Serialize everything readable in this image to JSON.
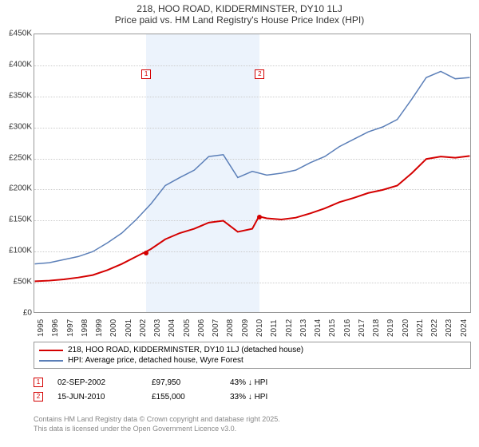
{
  "title": {
    "line1": "218, HOO ROAD, KIDDERMINSTER, DY10 1LJ",
    "line2": "Price paid vs. HM Land Registry's House Price Index (HPI)"
  },
  "chart": {
    "type": "line",
    "background_color": "#ffffff",
    "grid_color": "#cccccc",
    "border_color": "#999999",
    "ylim": [
      0,
      450000
    ],
    "ytick_step": 50000,
    "yticks": [
      {
        "v": 0,
        "label": "£0"
      },
      {
        "v": 50000,
        "label": "£50K"
      },
      {
        "v": 100000,
        "label": "£100K"
      },
      {
        "v": 150000,
        "label": "£150K"
      },
      {
        "v": 200000,
        "label": "£200K"
      },
      {
        "v": 250000,
        "label": "£250K"
      },
      {
        "v": 300000,
        "label": "£300K"
      },
      {
        "v": 350000,
        "label": "£350K"
      },
      {
        "v": 400000,
        "label": "£400K"
      },
      {
        "v": 450000,
        "label": "£450K"
      }
    ],
    "xlim": [
      1995,
      2025
    ],
    "xticks": [
      1995,
      1996,
      1997,
      1998,
      1999,
      2000,
      2001,
      2002,
      2003,
      2004,
      2005,
      2006,
      2007,
      2008,
      2009,
      2010,
      2011,
      2012,
      2013,
      2014,
      2015,
      2016,
      2017,
      2018,
      2019,
      2020,
      2021,
      2022,
      2023,
      2024
    ],
    "shade_band": {
      "from": 2002.67,
      "to": 2010.46,
      "color": "rgba(200,220,245,0.35)"
    },
    "series": [
      {
        "name": "price_paid",
        "label": "218, HOO ROAD, KIDDERMINSTER, DY10 1LJ (detached house)",
        "color": "#d40000",
        "line_width": 2,
        "data": [
          [
            1995,
            50000
          ],
          [
            1996,
            51000
          ],
          [
            1997,
            53000
          ],
          [
            1998,
            56000
          ],
          [
            1999,
            60000
          ],
          [
            2000,
            68000
          ],
          [
            2001,
            78000
          ],
          [
            2002,
            90000
          ],
          [
            2002.67,
            97950
          ],
          [
            2003,
            102000
          ],
          [
            2004,
            118000
          ],
          [
            2005,
            128000
          ],
          [
            2006,
            135000
          ],
          [
            2007,
            145000
          ],
          [
            2008,
            148000
          ],
          [
            2009,
            130000
          ],
          [
            2010,
            135000
          ],
          [
            2010.46,
            155000
          ],
          [
            2011,
            152000
          ],
          [
            2012,
            150000
          ],
          [
            2013,
            153000
          ],
          [
            2014,
            160000
          ],
          [
            2015,
            168000
          ],
          [
            2016,
            178000
          ],
          [
            2017,
            185000
          ],
          [
            2018,
            193000
          ],
          [
            2019,
            198000
          ],
          [
            2020,
            205000
          ],
          [
            2021,
            225000
          ],
          [
            2022,
            248000
          ],
          [
            2023,
            252000
          ],
          [
            2024,
            250000
          ],
          [
            2025,
            253000
          ]
        ]
      },
      {
        "name": "hpi",
        "label": "HPI: Average price, detached house, Wyre Forest",
        "color": "#5b7fb8",
        "line_width": 1.5,
        "data": [
          [
            1995,
            78000
          ],
          [
            1996,
            80000
          ],
          [
            1997,
            85000
          ],
          [
            1998,
            90000
          ],
          [
            1999,
            98000
          ],
          [
            2000,
            112000
          ],
          [
            2001,
            128000
          ],
          [
            2002,
            150000
          ],
          [
            2003,
            175000
          ],
          [
            2004,
            205000
          ],
          [
            2005,
            218000
          ],
          [
            2006,
            230000
          ],
          [
            2007,
            252000
          ],
          [
            2008,
            255000
          ],
          [
            2009,
            218000
          ],
          [
            2010,
            228000
          ],
          [
            2011,
            222000
          ],
          [
            2012,
            225000
          ],
          [
            2013,
            230000
          ],
          [
            2014,
            242000
          ],
          [
            2015,
            252000
          ],
          [
            2016,
            268000
          ],
          [
            2017,
            280000
          ],
          [
            2018,
            292000
          ],
          [
            2019,
            300000
          ],
          [
            2020,
            312000
          ],
          [
            2021,
            345000
          ],
          [
            2022,
            380000
          ],
          [
            2023,
            390000
          ],
          [
            2024,
            378000
          ],
          [
            2025,
            380000
          ]
        ]
      }
    ],
    "markers": [
      {
        "id": "1",
        "x": 2002.67,
        "y": 97950,
        "color": "#d40000",
        "label_y_offset": -230
      },
      {
        "id": "2",
        "x": 2010.46,
        "y": 155000,
        "color": "#d40000",
        "label_y_offset": -185
      }
    ]
  },
  "legend": {
    "items": [
      {
        "color": "#d40000",
        "label": "218, HOO ROAD, KIDDERMINSTER, DY10 1LJ (detached house)"
      },
      {
        "color": "#5b7fb8",
        "label": "HPI: Average price, detached house, Wyre Forest"
      }
    ]
  },
  "annotations": [
    {
      "id": "1",
      "color": "#d40000",
      "date": "02-SEP-2002",
      "price": "£97,950",
      "diff": "43% ↓ HPI"
    },
    {
      "id": "2",
      "color": "#d40000",
      "date": "15-JUN-2010",
      "price": "£155,000",
      "diff": "33% ↓ HPI"
    }
  ],
  "footer": {
    "line1": "Contains HM Land Registry data © Crown copyright and database right 2025.",
    "line2": "This data is licensed under the Open Government Licence v3.0."
  },
  "label_fontsize": 10,
  "title_fontsize": 12
}
